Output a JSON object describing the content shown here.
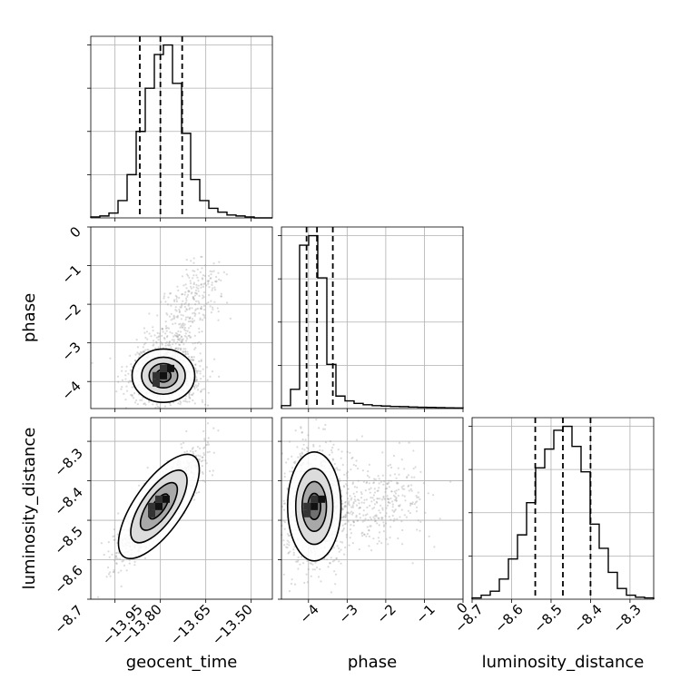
{
  "chart_data": {
    "type": "corner",
    "parameters": [
      "geocent_time",
      "phase",
      "luminosity_distance"
    ],
    "grid": true,
    "axes": {
      "geocent_time": {
        "label": "geocent_time",
        "range": [
          -14.03,
          -13.43
        ],
        "ticks": [
          -13.95,
          -13.8,
          -13.65,
          -13.5
        ],
        "tick_labels": [
          "−13.95",
          "−13.80",
          "−13.65",
          "−13.50"
        ]
      },
      "phase": {
        "label": "phase",
        "range": [
          -4.7,
          0.0
        ],
        "ticks": [
          -4,
          -3,
          -2,
          -1,
          0
        ],
        "tick_labels": [
          "−4",
          "−3",
          "−2",
          "−1",
          "0"
        ]
      },
      "luminosity_distance": {
        "label": "luminosity_distance",
        "range": [
          -8.7,
          -8.24
        ],
        "ticks": [
          -8.7,
          -8.6,
          -8.5,
          -8.4,
          -8.3
        ],
        "tick_labels": [
          "−8.7",
          "−8.6",
          "−8.5",
          "−8.4",
          "−8.3"
        ]
      }
    },
    "histograms": [
      {
        "parameter": "geocent_time",
        "bin_edges": [
          -14.03,
          -14.0,
          -13.97,
          -13.94,
          -13.91,
          -13.88,
          -13.85,
          -13.82,
          -13.79,
          -13.76,
          -13.73,
          -13.7,
          -13.67,
          -13.64,
          -13.61,
          -13.58,
          -13.55,
          -13.52,
          -13.49,
          -13.46,
          -13.43
        ],
        "counts": [
          1,
          2,
          5,
          18,
          45,
          90,
          135,
          170,
          180,
          140,
          88,
          40,
          18,
          10,
          6,
          3,
          2,
          1,
          0,
          0
        ],
        "quantiles": [
          -13.868,
          -13.8,
          -13.728
        ]
      },
      {
        "parameter": "phase",
        "bin_edges": [
          -4.7,
          -4.465,
          -4.23,
          -3.995,
          -3.76,
          -3.525,
          -3.29,
          -3.055,
          -2.82,
          -2.585,
          -2.35,
          -2.115,
          -1.88,
          -1.645,
          -1.41,
          -1.175,
          -0.94,
          -0.705,
          -0.47,
          -0.235,
          0.0
        ],
        "counts": [
          1.5,
          10,
          85,
          90,
          68,
          23,
          6.5,
          4,
          2.7,
          2.0,
          1.5,
          1.3,
          1.1,
          1.0,
          0.8,
          0.7,
          0.6,
          0.5,
          0.4,
          0.3
        ],
        "quantiles": [
          -4.05,
          -3.78,
          -3.37
        ]
      },
      {
        "parameter": "luminosity_distance",
        "bin_edges": [
          -8.7,
          -8.677,
          -8.654,
          -8.631,
          -8.608,
          -8.585,
          -8.562,
          -8.539,
          -8.516,
          -8.493,
          -8.47,
          -8.447,
          -8.424,
          -8.401,
          -8.378,
          -8.355,
          -8.332,
          -8.309,
          -8.286,
          -8.263,
          -8.24
        ],
        "counts": [
          1,
          3,
          6,
          15,
          30,
          48,
          72,
          98,
          112,
          126,
          129,
          114,
          95,
          56,
          38,
          20,
          8,
          3,
          1.5,
          1
        ],
        "quantiles": [
          -8.54,
          -8.47,
          -8.4
        ]
      }
    ],
    "density_2d": [
      {
        "x": "geocent_time",
        "y": "phase",
        "center": [
          -13.79,
          -3.85
        ],
        "spread": [
          0.045,
          0.3
        ],
        "tail_toward": [
          -13.66,
          -1.2
        ],
        "contour_levels": 4
      },
      {
        "x": "geocent_time",
        "y": "luminosity_distance",
        "center": [
          -13.805,
          -8.465
        ],
        "spread": [
          0.05,
          0.05
        ],
        "correlation": 0.85,
        "contour_levels": 4
      },
      {
        "x": "phase",
        "y": "luminosity_distance",
        "center": [
          -3.85,
          -8.465
        ],
        "spread": [
          0.3,
          0.06
        ],
        "tail_toward": [
          -1.2,
          -8.45
        ],
        "contour_levels": 4
      }
    ]
  }
}
